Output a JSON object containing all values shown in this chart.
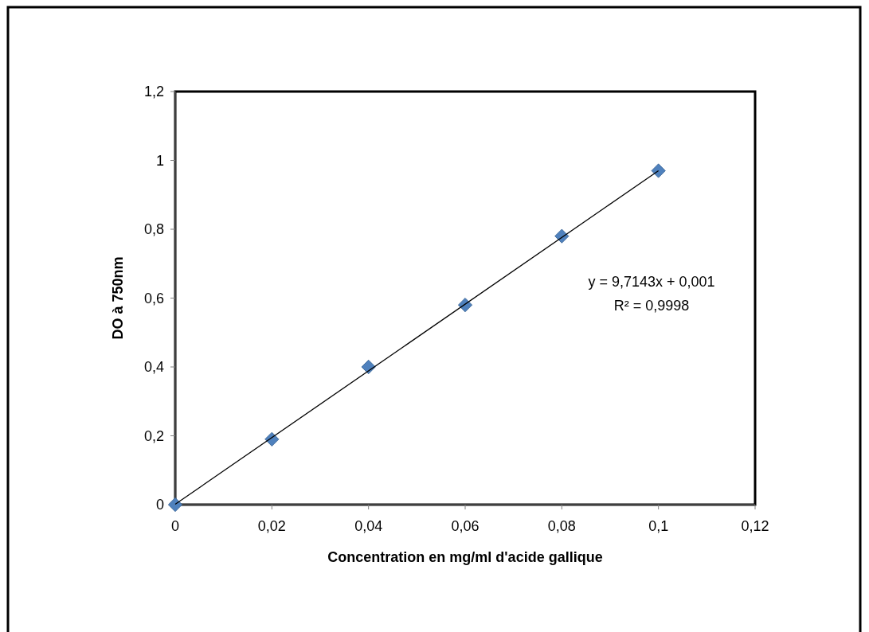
{
  "chart_data": {
    "type": "scatter",
    "xlabel": "Concentration en mg/ml d'acide gallique",
    "ylabel": "DO à 750nm",
    "xlim": [
      0,
      0.12
    ],
    "ylim": [
      0,
      1.2
    ],
    "xticks": [
      0,
      {
        "value": 0.02,
        "label": "0,02"
      },
      {
        "value": 0.04,
        "label": "0,04"
      },
      {
        "value": 0.06,
        "label": "0,06"
      },
      {
        "value": 0.08,
        "label": "0,08"
      },
      {
        "value": 0.1,
        "label": "0,1"
      },
      {
        "value": 0.12,
        "label": "0,12"
      }
    ],
    "yticks": [
      0,
      {
        "value": 0.2,
        "label": "0,2"
      },
      {
        "value": 0.4,
        "label": "0,4"
      },
      {
        "value": 0.6,
        "label": "0,6"
      },
      {
        "value": 0.8,
        "label": "0,8"
      },
      1,
      {
        "value": 1.2,
        "label": "1,2"
      }
    ],
    "series": [
      {
        "color": "#4f81bd",
        "marker": "diamond",
        "x": [
          0,
          0.02,
          0.04,
          0.06,
          0.08,
          0.1
        ],
        "values": [
          0,
          0.19,
          0.4,
          0.58,
          0.78,
          0.97
        ]
      },
      {
        "type": "line",
        "color": "#000000",
        "marker": "none",
        "line_style": "solid",
        "x": [
          0,
          0.1
        ],
        "values": [
          0.001,
          0.97
        ]
      }
    ],
    "annotations": [
      "y = 9,7143x + 0,001",
      "R² = 0,9998"
    ],
    "grid": false
  }
}
